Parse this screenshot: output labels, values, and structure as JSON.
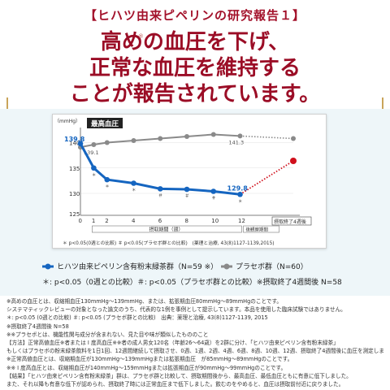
{
  "subtitle": "【ヒハツ由来ピペリンの研究報告１】",
  "headline": {
    "line1": "高めの血圧を下げ、",
    "line2": "正常な血圧を維持する",
    "line3": "ことが報告されています。",
    "mark": "※"
  },
  "colors": {
    "accent": "#9b0d26",
    "blue": "#1565c0",
    "gray": "#8a8a8a",
    "red": "#d0101c",
    "panel": "#eef6f9"
  },
  "chart_data": {
    "type": "line",
    "title": "最高血圧",
    "ylabel": "（mmHg）",
    "ylim": [
      126,
      142
    ],
    "yticks": [
      125,
      130,
      135,
      140
    ],
    "categories": [
      "0",
      "1",
      "2",
      "4",
      "6",
      "8",
      "10",
      "12",
      "摂取終了4週後"
    ],
    "period_label_intake": "摂取期間（週）",
    "period_label_after": "後観察期間",
    "series": [
      {
        "name": "ヒハツ由来ピペリン含有粉末緑茶群（N=59 ※）",
        "color": "#1565c0",
        "values": [
          139.8,
          135.0,
          132.7,
          132.0,
          130.9,
          130.8,
          130.4,
          129.8,
          136.4
        ],
        "marks": [
          "",
          "＊",
          "＊",
          "＊",
          "＃",
          "＃",
          "＃",
          "＊",
          ""
        ],
        "start_label": "139.8",
        "end_label": "129.8"
      },
      {
        "name": "プラセボ群（N=60）",
        "color": "#8a8a8a",
        "values": [
          139.1,
          139.6,
          140.0,
          140.4,
          140.8,
          141.2,
          141.6,
          141.3,
          140.8
        ],
        "start_label": "139.1",
        "end_label": "141.3"
      }
    ],
    "footnote": "＊ p<0.05(0週との比較) ＃ p<0.05(プラセボ群との比較)　(薬理と治療, 43(8)1127-1139,2015)"
  },
  "legend": {
    "blue_label": "ヒハツ由来ピペリン含有粉末緑茶群（N=59 ※）",
    "gray_label": "プラセボ群（N=60）",
    "marks_label": "＊: p<0.05（0週との比較）＃: p<0.05（プラセボ群との比較）※摂取終了4週間後 N=58"
  },
  "notes": [
    "※高めの血圧とは、収縮期血圧130mmHg〜139mmHg、または、拡張期血圧80mmHg〜89mmHgのことです。",
    "システマティックレビューの対象となった論文のうち、代表的な1例を事例として提示しています。本品を使用した臨床試験ではありません。",
    "＊: p<0.05 (0週との比較) ＃: p<0.05 (プラセボ群との比較)　出典：薬理と治療, 43(8)1127-1139, 2015",
    "※摂取終了4週間後 N=58",
    "※※プラセボとは、機能性関与成分が含まれない、見た目や味が類似したもののこと",
    "【方法】正常高値血圧※者または I 度高血圧※※者の成人男女120名（年齢26〜64歳）を2群に分け、「ヒハツ由来ピペリン含有粉末緑茶」",
    "もしくはプラセボの粉末緑茶飲料を1日1回、12週間継続して摂取させ、0週、1週、2週、4週、6週、8週、10週、12週、摂取終了4週間後に血圧を測定しました。",
    "※正常高値血圧とは、収縮期血圧が130mmHg〜139mmHgまたは拡張期血圧　が85mmHg〜89mmHgのことです。",
    "※※ I 度高血圧とは、収縮期血圧が140mmHg〜159mmHgまたは拡張期血圧が90mmHg〜99mmHgのことです。",
    "【結果】「ヒハツ由来ピペリン含有粉末緑茶」群は、プラセボ群と比較して、摂取期間後から、最高血圧、最低血圧ともに有意に低下しました。",
    "また、それ以降も有意な低下が認められ、摂取終了時には正常血圧まで低下しました。飲むのをやめると、血圧は摂取前付近に戻りました。"
  ]
}
